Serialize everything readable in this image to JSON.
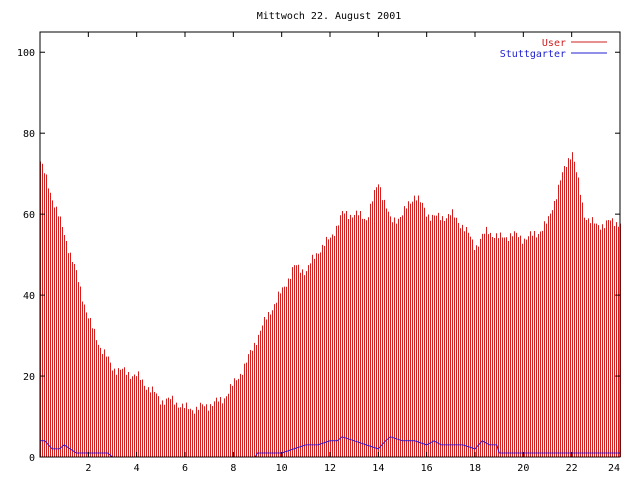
{
  "chart_data": {
    "type": "bar",
    "title": "Mittwoch 22. August 2001",
    "xlabel": "",
    "ylabel": "",
    "xlim": [
      0,
      24
    ],
    "ylim": [
      0,
      105
    ],
    "x_ticks": [
      2,
      4,
      6,
      8,
      10,
      12,
      14,
      16,
      18,
      20,
      22,
      24
    ],
    "y_ticks": [
      0,
      20,
      40,
      60,
      80,
      100
    ],
    "grid": false,
    "legend_position": "top-right",
    "series": [
      {
        "name": "User",
        "style": "impulses",
        "color": "#d02020",
        "x": [
          0.0,
          0.5,
          1.0,
          1.5,
          2.0,
          2.5,
          3.0,
          3.5,
          4.0,
          4.5,
          5.0,
          5.5,
          6.0,
          6.5,
          7.0,
          7.5,
          8.0,
          8.5,
          9.0,
          9.5,
          10.0,
          10.5,
          11.0,
          11.5,
          12.0,
          12.5,
          13.0,
          13.5,
          14.0,
          14.5,
          15.0,
          15.5,
          16.0,
          16.5,
          17.0,
          17.5,
          18.0,
          18.5,
          19.0,
          19.5,
          20.0,
          20.5,
          21.0,
          21.5,
          22.0,
          22.5,
          23.0,
          23.5,
          24.0
        ],
        "values": [
          73,
          64,
          55,
          45,
          34,
          27,
          22,
          21,
          20,
          17,
          14,
          14,
          12,
          12,
          13,
          14,
          18,
          23,
          30,
          36,
          41,
          47,
          46,
          51,
          54,
          60,
          60,
          59,
          68,
          58,
          60,
          65,
          60,
          59,
          60,
          57,
          52,
          56,
          54,
          55,
          54,
          55,
          58,
          68,
          76,
          60,
          57,
          58,
          58
        ]
      },
      {
        "name": "Stuttgarter",
        "style": "line",
        "color": "#2020d0",
        "x": [
          0.0,
          0.2,
          0.5,
          0.8,
          1.0,
          1.5,
          2.0,
          2.5,
          2.8,
          3.0,
          4.0,
          5.0,
          6.0,
          7.0,
          8.0,
          8.9,
          9.0,
          9.5,
          10.0,
          10.5,
          11.0,
          11.5,
          12.0,
          12.3,
          12.5,
          13.0,
          13.5,
          14.0,
          14.3,
          14.5,
          15.0,
          15.5,
          16.0,
          16.3,
          16.6,
          17.0,
          17.5,
          18.0,
          18.3,
          18.6,
          18.9,
          19.0,
          20.0,
          21.0,
          22.0,
          23.0,
          24.0
        ],
        "values": [
          4,
          4,
          2,
          2,
          3,
          1,
          1,
          1,
          1,
          0,
          0,
          0,
          0,
          0,
          0,
          0,
          1,
          1,
          1,
          2,
          3,
          3,
          4,
          4,
          5,
          4,
          3,
          2,
          4,
          5,
          4,
          4,
          3,
          4,
          3,
          3,
          3,
          2,
          4,
          3,
          3,
          1,
          1,
          1,
          1,
          1,
          1
        ]
      }
    ]
  }
}
